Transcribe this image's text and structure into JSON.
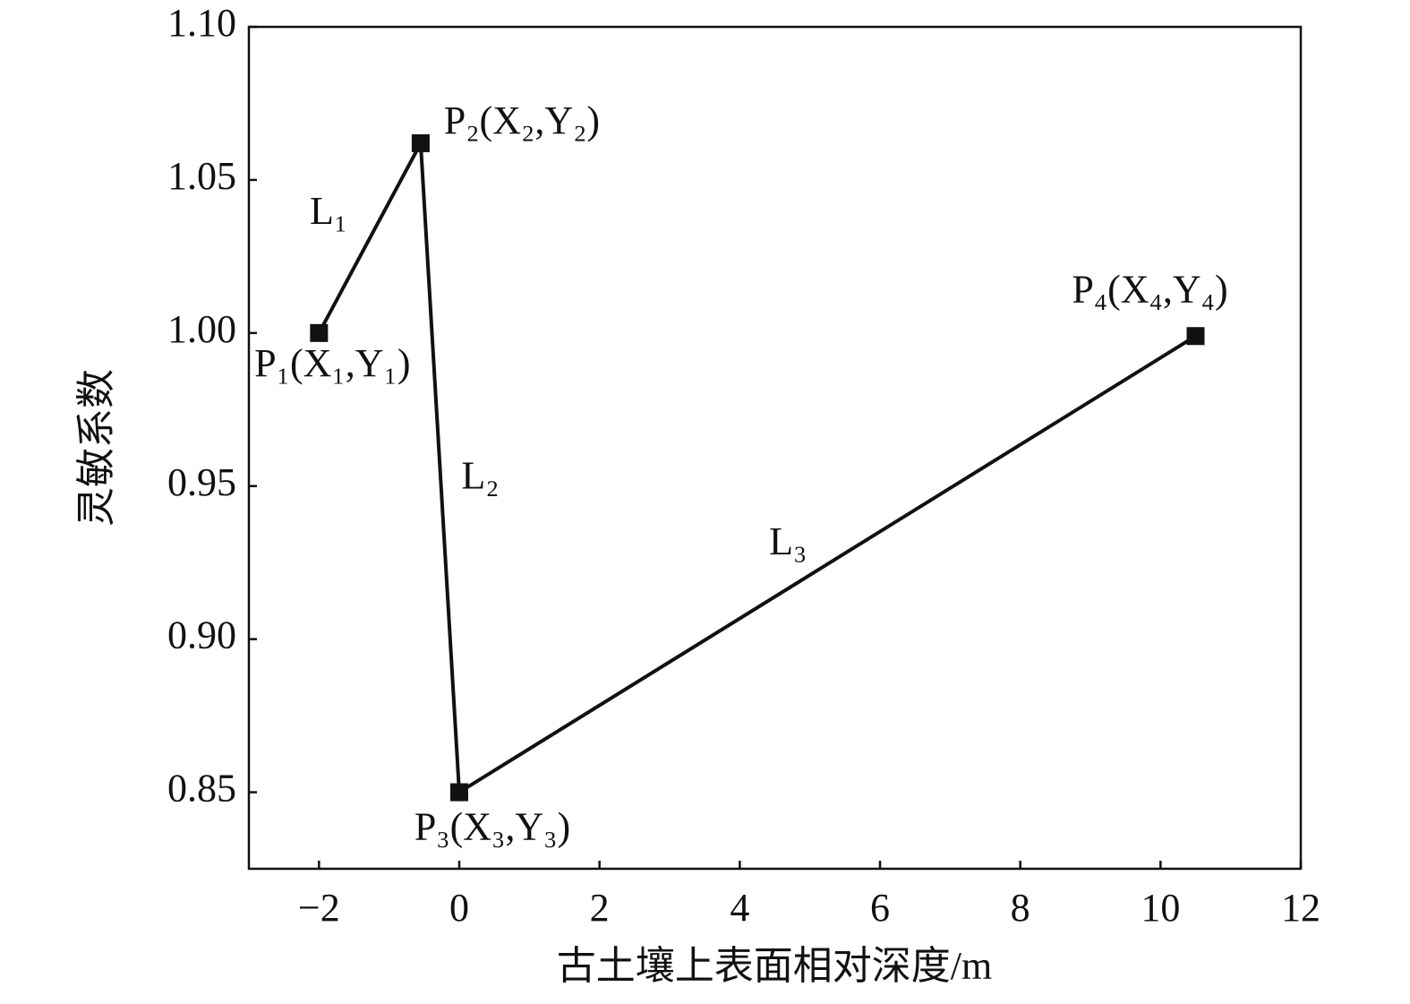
{
  "chart_data": {
    "type": "line",
    "x_label": "古土壤上表面相对深度/m",
    "y_label": "灵敏系数",
    "x": [
      -2,
      -0.55,
      0,
      10.5
    ],
    "values": [
      1.0,
      1.062,
      0.85,
      0.999
    ],
    "color": "#111111",
    "marker": "square",
    "point_labels": [
      "P₁(X₁,Y₁)",
      "P₂(X₂,Y₂)",
      "P₃(X₃,Y₃)",
      "P₄(X₄,Y₄)"
    ],
    "segment_labels": [
      "L₁",
      "L₂",
      "L₃"
    ],
    "xlim": [
      -3,
      12
    ],
    "xticks": [
      {
        "value": -2,
        "label": "−2"
      },
      0,
      2,
      4,
      6,
      8,
      10,
      12
    ],
    "ylim": [
      0.825,
      1.1
    ],
    "yticks": [
      {
        "value": 0.85,
        "label": "0.85"
      },
      {
        "value": 0.9,
        "label": "0.90"
      },
      {
        "value": 0.95,
        "label": "0.95"
      },
      {
        "value": 1.0,
        "label": "1.00"
      },
      {
        "value": 1.05,
        "label": "1.05"
      },
      {
        "value": 1.1,
        "label": "1.10"
      }
    ]
  }
}
